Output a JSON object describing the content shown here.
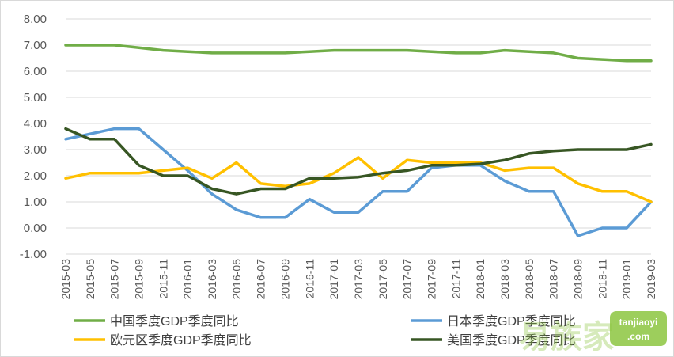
{
  "chart_data": {
    "type": "line",
    "title": "",
    "xlabel": "",
    "ylabel": "",
    "ylim": [
      -1,
      8
    ],
    "y_ticks": [
      "8.00",
      "7.00",
      "6.00",
      "5.00",
      "4.00",
      "3.00",
      "2.00",
      "1.00",
      "0.00",
      "-1.00"
    ],
    "y_tick_values": [
      8,
      7,
      6,
      5,
      4,
      3,
      2,
      1,
      0,
      -1
    ],
    "x": [
      "2015-03",
      "2015-05",
      "2015-07",
      "2015-09",
      "2015-11",
      "2016-01",
      "2016-03",
      "2016-05",
      "2016-07",
      "2016-09",
      "2016-11",
      "2017-01",
      "2017-03",
      "2017-05",
      "2017-07",
      "2017-09",
      "2017-11",
      "2018-01",
      "2018-03",
      "2018-05",
      "2018-07",
      "2018-09",
      "2018-11",
      "2019-01",
      "2019-03"
    ],
    "grid": "horizontal",
    "legend_position": "bottom",
    "series": [
      {
        "name": "中国季度GDP季度同比",
        "color": "#70ad47",
        "values": [
          7.0,
          7.0,
          7.0,
          6.9,
          6.8,
          6.75,
          6.7,
          6.7,
          6.7,
          6.7,
          6.75,
          6.8,
          6.8,
          6.8,
          6.8,
          6.75,
          6.7,
          6.7,
          6.8,
          6.75,
          6.7,
          6.5,
          6.45,
          6.4,
          6.4
        ]
      },
      {
        "name": "日本季度GDP季度同比",
        "color": "#5b9bd5",
        "values": [
          3.4,
          3.6,
          3.8,
          3.8,
          3.0,
          2.2,
          1.3,
          0.7,
          0.4,
          0.4,
          1.1,
          0.6,
          0.6,
          1.4,
          1.4,
          2.3,
          2.4,
          2.4,
          1.8,
          1.4,
          1.4,
          -0.3,
          0.0,
          0.0,
          1.0
        ]
      },
      {
        "name": "欧元区季度GDP季度同比",
        "color": "#ffc000",
        "values": [
          1.9,
          2.1,
          2.1,
          2.1,
          2.2,
          2.3,
          1.9,
          2.5,
          1.7,
          1.6,
          1.7,
          2.1,
          2.7,
          1.9,
          2.6,
          2.5,
          2.5,
          2.5,
          2.2,
          2.3,
          2.3,
          1.7,
          1.4,
          1.4,
          1.0
        ]
      },
      {
        "name": "美国季度GDP季度同比",
        "color": "#375623",
        "values": [
          3.8,
          3.4,
          3.4,
          2.4,
          2.0,
          2.0,
          1.5,
          1.3,
          1.5,
          1.5,
          1.9,
          1.9,
          1.95,
          2.1,
          2.2,
          2.4,
          2.4,
          2.45,
          2.6,
          2.85,
          2.95,
          3.0,
          3.0,
          3.0,
          3.2
        ]
      }
    ]
  },
  "watermark": {
    "text": "易族家",
    "subtext_1": "tanjiaoyi",
    "subtext_2": ".com"
  }
}
